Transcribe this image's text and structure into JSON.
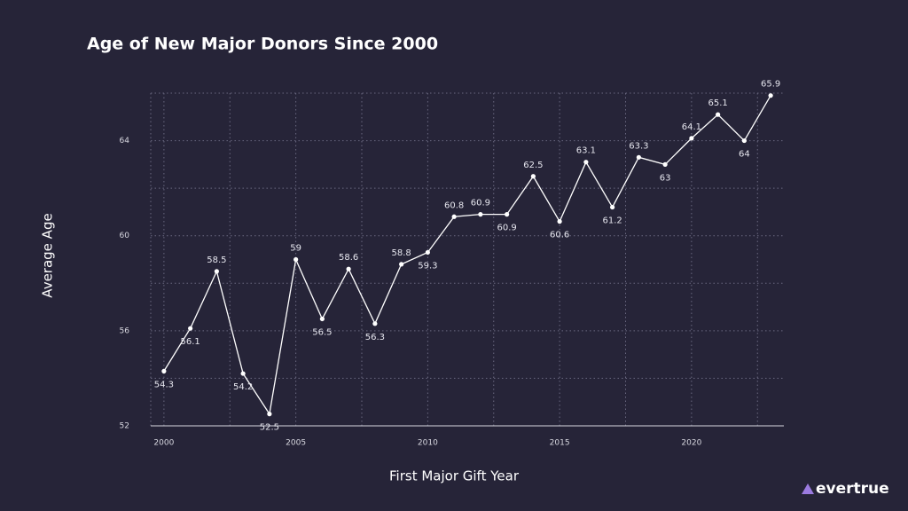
{
  "chart_data": {
    "type": "line",
    "title": "Age of New Major Donors Since 2000",
    "x_label": "First Major Gift Year",
    "y_label": "Average Age",
    "x": [
      2000,
      2001,
      2002,
      2003,
      2004,
      2005,
      2006,
      2007,
      2008,
      2009,
      2010,
      2011,
      2012,
      2013,
      2014,
      2015,
      2016,
      2017,
      2018,
      2019,
      2020,
      2021,
      2022,
      2023
    ],
    "series": [
      {
        "name": "Average Age",
        "color": "#ffffff",
        "values": [
          54.3,
          56.1,
          58.5,
          54.2,
          52.5,
          59,
          56.5,
          58.6,
          56.3,
          58.8,
          59.3,
          60.8,
          60.9,
          60.9,
          62.5,
          60.6,
          63.1,
          61.2,
          63.3,
          63,
          64.1,
          65.1,
          64,
          65.9
        ]
      }
    ],
    "xlim": [
      1999.5,
      2023.5
    ],
    "xticks": [
      2000,
      2005,
      2010,
      2015,
      2020
    ],
    "ylim": [
      52,
      66
    ],
    "yticks": [
      52,
      56,
      60,
      64
    ],
    "grid": true,
    "data_labels": true
  },
  "brand": "evertrue"
}
